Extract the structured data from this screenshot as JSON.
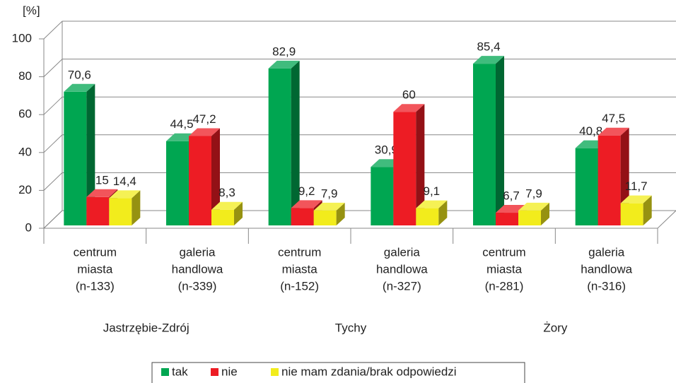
{
  "chart_data": {
    "type": "bar3d",
    "y_label": "[%]",
    "categories": [
      [
        "centrum",
        "miasta",
        "(n-133)"
      ],
      [
        "galeria",
        "handlowa",
        "(n-339)"
      ],
      [
        "centrum",
        "miasta",
        "(n-152)"
      ],
      [
        "galeria",
        "handlowa",
        "(n-327)"
      ],
      [
        "centrum",
        "miasta",
        "(n-281)"
      ],
      [
        "galeria",
        "handlowa",
        "(n-316)"
      ]
    ],
    "groups": [
      "Jastrzębie-Zdrój",
      "Tychy",
      "Żory"
    ],
    "series": [
      {
        "name": "tak",
        "color": "#00a651",
        "values": [
          70.6,
          44.5,
          82.9,
          30.9,
          85.4,
          40.8
        ],
        "value_labels": [
          "70,6",
          "44,5",
          "82,9",
          "30,9",
          "85,4",
          "40,8"
        ]
      },
      {
        "name": "nie",
        "color": "#ed1c24",
        "values": [
          15,
          47.2,
          9.2,
          60,
          6.7,
          47.5
        ],
        "value_labels": [
          "15",
          "47,2",
          "9,2",
          "60",
          "6,7",
          "47,5"
        ]
      },
      {
        "name": "nie mam zdania/brak odpowiedzi",
        "color": "#f2ec1c",
        "values": [
          14.4,
          8.3,
          7.9,
          9.1,
          7.9,
          11.7
        ],
        "value_labels": [
          "14,4",
          "8,3",
          "7,9",
          "9,1",
          "7,9",
          "11,7"
        ]
      }
    ],
    "ylim": [
      0,
      100
    ],
    "yticks": [
      0,
      20,
      40,
      60,
      80,
      100
    ],
    "grid": true,
    "legend": "bottom"
  }
}
